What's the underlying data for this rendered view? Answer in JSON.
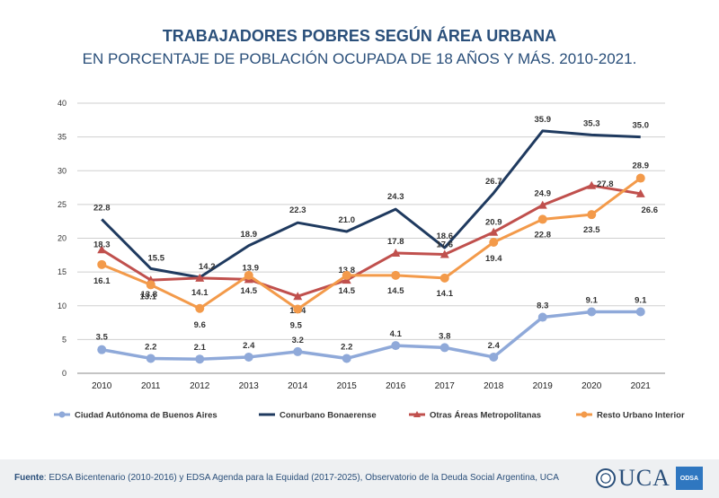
{
  "header": {
    "title": "TRABAJADORES POBRES SEGÚN ÁREA URBANA",
    "subtitle": "EN PORCENTAJE DE POBLACIÓN OCUPADA DE 18 AÑOS Y MÁS. 2010-2021."
  },
  "footer": {
    "source_label": "Fuente",
    "source_text": ": EDSA Bicentenario (2010-2016) y EDSA Agenda para la Equidad (2017-2025), Observatorio de la Deuda Social Argentina, UCA",
    "logo_text": "UCA",
    "badge_text": "ODSA"
  },
  "chart_data": {
    "type": "line",
    "x": [
      "2010",
      "2011",
      "2012",
      "2013",
      "2014",
      "2015",
      "2016",
      "2017",
      "2018",
      "2019",
      "2020",
      "2021"
    ],
    "ylim": [
      0,
      40
    ],
    "yticks": [
      "0",
      "5",
      "10",
      "15",
      "20",
      "25",
      "30",
      "35",
      "40"
    ],
    "grid": true,
    "legend_position": "bottom",
    "series": [
      {
        "name": "Ciudad Autónoma de Buenos Aires",
        "color": "#8fa9d9",
        "marker": "circle",
        "values": [
          3.5,
          2.2,
          2.1,
          2.4,
          3.2,
          2.2,
          4.1,
          3.8,
          2.4,
          8.3,
          9.1,
          9.1
        ],
        "labels": [
          "3.5",
          "2.2",
          "2.1",
          "2.4",
          "3.2",
          "2.2",
          "4.1",
          "3.8",
          "2.4",
          "8.3",
          "9.1",
          "9.1"
        ]
      },
      {
        "name": "Conurbano Bonaerense",
        "color": "#1f3a5f",
        "marker": "none",
        "values": [
          22.8,
          15.5,
          14.2,
          18.9,
          22.3,
          21.0,
          24.3,
          18.6,
          26.7,
          35.9,
          35.3,
          35.0
        ],
        "labels": [
          "22.8",
          "15.5",
          "14.2",
          "18.9",
          "22.3",
          "21.0",
          "24.3",
          "18.6",
          "26.7",
          "35.9",
          "35.3",
          "35.0"
        ]
      },
      {
        "name": "Otras Áreas Metropolitanas",
        "color": "#c0504d",
        "marker": "triangle",
        "values": [
          18.3,
          13.8,
          14.1,
          13.9,
          11.4,
          13.8,
          17.8,
          17.6,
          20.9,
          24.9,
          27.8,
          26.6
        ],
        "labels": [
          "18.3",
          "13.8",
          "14.1",
          "13.9",
          "11.4",
          "13.8",
          "17.8",
          "17.6",
          "20.9",
          "24.9",
          "27.8",
          "26.6"
        ]
      },
      {
        "name": "Resto Urbano Interior",
        "color": "#f39a4a",
        "marker": "circle",
        "values": [
          16.1,
          13.1,
          9.6,
          14.5,
          9.5,
          14.5,
          14.5,
          14.1,
          19.4,
          22.8,
          23.5,
          28.9
        ],
        "labels": [
          "16.1",
          "13.1",
          "9.6",
          "14.5",
          "9.5",
          "14.5",
          "14.5",
          "14.1",
          "19.4",
          "22.8",
          "23.5",
          "28.9"
        ]
      }
    ]
  }
}
